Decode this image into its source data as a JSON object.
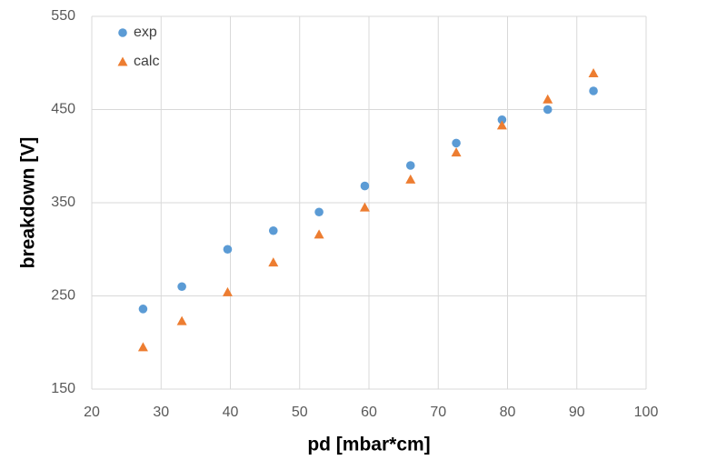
{
  "chart_data": {
    "type": "scatter",
    "xlabel": "pd [mbar*cm]",
    "ylabel": "breakdown [V]",
    "x": [
      27.4,
      33,
      39.6,
      46.2,
      52.8,
      59.4,
      66,
      72.6,
      79.2,
      85.8,
      92.4
    ],
    "series": [
      {
        "name": "exp",
        "color": "#5b9bd5",
        "marker": "circle",
        "values": [
          236,
          260,
          300,
          320,
          340,
          368,
          390,
          414,
          439,
          450,
          470
        ]
      },
      {
        "name": "calc",
        "color": "#ed7d31",
        "marker": "triangle",
        "values": [
          195,
          223,
          254,
          286,
          316,
          345,
          375,
          404,
          433,
          461,
          489
        ]
      }
    ],
    "xlim": [
      20,
      100
    ],
    "xticks": [
      20,
      30,
      40,
      50,
      60,
      70,
      80,
      90,
      100
    ],
    "ylim": [
      150,
      550
    ],
    "yticks": [
      150,
      250,
      350,
      450,
      550
    ],
    "grid": true,
    "legend": "top-left"
  }
}
